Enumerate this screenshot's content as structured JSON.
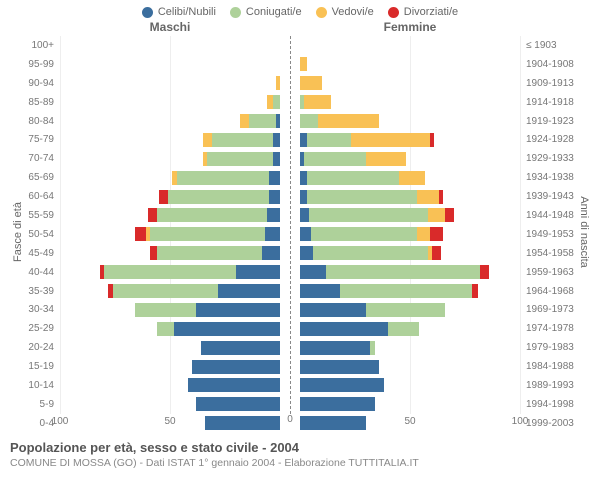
{
  "legend": [
    {
      "label": "Celibi/Nubili",
      "color": "#3b6e9e"
    },
    {
      "label": "Coniugati/e",
      "color": "#aed19a"
    },
    {
      "label": "Vedovi/e",
      "color": "#f9c155"
    },
    {
      "label": "Divorziati/e",
      "color": "#d92a2a"
    }
  ],
  "titles": {
    "male": "Maschi",
    "female": "Femmine"
  },
  "yaxis": {
    "left": "Fasce di età",
    "right": "Anni di nascita"
  },
  "xaxis": {
    "max": 100,
    "ticks_left": [
      100,
      50,
      0
    ],
    "ticks_right": [
      0,
      50,
      100
    ]
  },
  "colors": {
    "single": "#3b6e9e",
    "married": "#aed19a",
    "widowed": "#f9c155",
    "divorced": "#d92a2a",
    "grid": "#eeeeee",
    "center": "#888888",
    "bg": "#ffffff"
  },
  "footer": {
    "title": "Popolazione per età, sesso e stato civile - 2004",
    "sub": "COMUNE DI MOSSA (GO) - Dati ISTAT 1° gennaio 2004 - Elaborazione TUTTITALIA.IT"
  },
  "rows": [
    {
      "age": "100+",
      "birth": "≤ 1903",
      "m": [
        0,
        0,
        0,
        0
      ],
      "f": [
        0,
        0,
        0,
        0
      ]
    },
    {
      "age": "95-99",
      "birth": "1904-1908",
      "m": [
        0,
        0,
        0,
        0
      ],
      "f": [
        0,
        0,
        3,
        0
      ]
    },
    {
      "age": "90-94",
      "birth": "1909-1913",
      "m": [
        0,
        0,
        2,
        0
      ],
      "f": [
        0,
        0,
        10,
        0
      ]
    },
    {
      "age": "85-89",
      "birth": "1914-1918",
      "m": [
        0,
        3,
        3,
        0
      ],
      "f": [
        0,
        2,
        12,
        0
      ]
    },
    {
      "age": "80-84",
      "birth": "1919-1923",
      "m": [
        2,
        12,
        4,
        0
      ],
      "f": [
        0,
        8,
        28,
        0
      ]
    },
    {
      "age": "75-79",
      "birth": "1924-1928",
      "m": [
        3,
        28,
        4,
        0
      ],
      "f": [
        3,
        20,
        36,
        2
      ]
    },
    {
      "age": "70-74",
      "birth": "1929-1933",
      "m": [
        3,
        30,
        2,
        0
      ],
      "f": [
        2,
        28,
        18,
        0
      ]
    },
    {
      "age": "65-69",
      "birth": "1934-1938",
      "m": [
        5,
        42,
        2,
        0
      ],
      "f": [
        3,
        42,
        12,
        0
      ]
    },
    {
      "age": "60-64",
      "birth": "1939-1943",
      "m": [
        5,
        46,
        0,
        4
      ],
      "f": [
        3,
        50,
        10,
        2
      ]
    },
    {
      "age": "55-59",
      "birth": "1944-1948",
      "m": [
        6,
        50,
        0,
        4
      ],
      "f": [
        4,
        54,
        8,
        4
      ]
    },
    {
      "age": "50-54",
      "birth": "1949-1953",
      "m": [
        7,
        52,
        2,
        5
      ],
      "f": [
        5,
        48,
        6,
        6
      ]
    },
    {
      "age": "45-49",
      "birth": "1954-1958",
      "m": [
        8,
        48,
        0,
        3
      ],
      "f": [
        6,
        52,
        2,
        4
      ]
    },
    {
      "age": "40-44",
      "birth": "1959-1963",
      "m": [
        20,
        60,
        0,
        2
      ],
      "f": [
        12,
        70,
        0,
        4
      ]
    },
    {
      "age": "35-39",
      "birth": "1964-1968",
      "m": [
        28,
        48,
        0,
        2
      ],
      "f": [
        18,
        60,
        0,
        3
      ]
    },
    {
      "age": "30-34",
      "birth": "1969-1973",
      "m": [
        38,
        28,
        0,
        0
      ],
      "f": [
        30,
        36,
        0,
        0
      ]
    },
    {
      "age": "25-29",
      "birth": "1974-1978",
      "m": [
        48,
        8,
        0,
        0
      ],
      "f": [
        40,
        14,
        0,
        0
      ]
    },
    {
      "age": "20-24",
      "birth": "1979-1983",
      "m": [
        36,
        0,
        0,
        0
      ],
      "f": [
        32,
        2,
        0,
        0
      ]
    },
    {
      "age": "15-19",
      "birth": "1984-1988",
      "m": [
        40,
        0,
        0,
        0
      ],
      "f": [
        36,
        0,
        0,
        0
      ]
    },
    {
      "age": "10-14",
      "birth": "1989-1993",
      "m": [
        42,
        0,
        0,
        0
      ],
      "f": [
        38,
        0,
        0,
        0
      ]
    },
    {
      "age": "5-9",
      "birth": "1994-1998",
      "m": [
        38,
        0,
        0,
        0
      ],
      "f": [
        34,
        0,
        0,
        0
      ]
    },
    {
      "age": "0-4",
      "birth": "1999-2003",
      "m": [
        34,
        0,
        0,
        0
      ],
      "f": [
        30,
        0,
        0,
        0
      ]
    }
  ]
}
